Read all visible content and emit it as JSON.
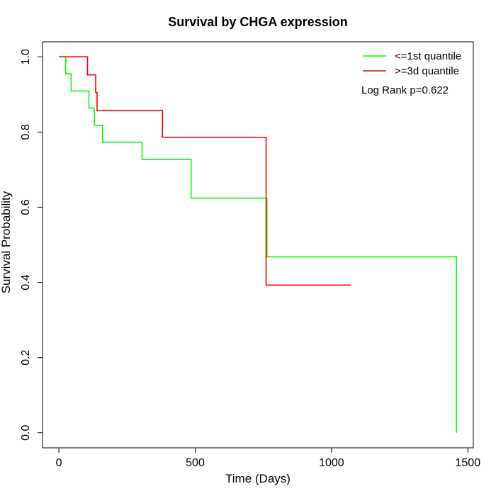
{
  "chart_data": {
    "type": "line",
    "subtype": "kaplan-meier step",
    "title": "Survival by CHGA expression",
    "xlabel": "Time (Days)",
    "ylabel": "Survival Probability",
    "xlim": [
      -60,
      1520
    ],
    "ylim": [
      -0.04,
      1.04
    ],
    "x_ticks": [
      0,
      500,
      1000,
      1500
    ],
    "y_ticks": [
      0.0,
      0.2,
      0.4,
      0.6,
      0.8,
      1.0
    ],
    "x_tick_labels": [
      "0",
      "500",
      "1000",
      "1500"
    ],
    "y_tick_labels": [
      "0.0",
      "0.2",
      "0.4",
      "0.6",
      "0.8",
      "1.0"
    ],
    "grid": false,
    "legend_position": "top-right",
    "annotation": "Log Rank p=0.622",
    "series": [
      {
        "name": "<=1st quantile",
        "color": "#00FF00",
        "x": [
          0,
          25,
          45,
          110,
          130,
          160,
          305,
          485,
          763,
          1458,
          1458
        ],
        "y": [
          1.0,
          0.955,
          0.909,
          0.864,
          0.818,
          0.773,
          0.727,
          0.624,
          0.468,
          0.468,
          0.0
        ]
      },
      {
        "name": ">=3d quantile",
        "color": "#FF0000",
        "x": [
          0,
          105,
          135,
          140,
          380,
          760,
          1070
        ],
        "y": [
          1.0,
          0.952,
          0.905,
          0.857,
          0.786,
          0.393,
          0.393
        ]
      }
    ]
  }
}
